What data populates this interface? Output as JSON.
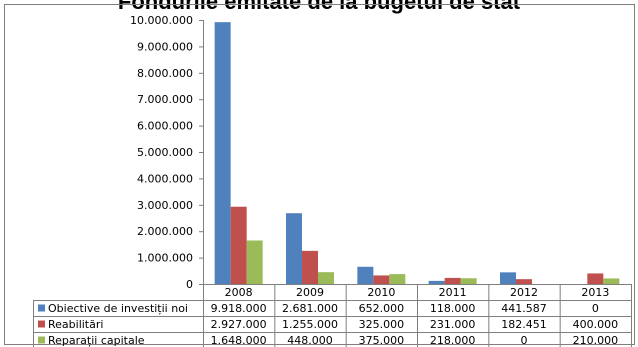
{
  "title": "Fondurile emitate de la bugetul de stat",
  "chart_data": {
    "type": "bar",
    "title": "Fondurile emitate de la bugetul de stat",
    "categories": [
      "2008",
      "2009",
      "2010",
      "2011",
      "2012",
      "2013"
    ],
    "series": [
      {
        "name": "Obiective de investiții noi",
        "values": [
          9918000,
          2681000,
          652000,
          118000,
          441587,
          0
        ],
        "labels": [
          "9.918.000",
          "2.681.000",
          "652.000",
          "118.000",
          "441.587",
          "0"
        ],
        "color": "#4F81BD"
      },
      {
        "name": "Reabilitări",
        "values": [
          2927000,
          1255000,
          325000,
          231000,
          182451,
          400000
        ],
        "labels": [
          "2.927.000",
          "1.255.000",
          "325.000",
          "231.000",
          "182.451",
          "400.000"
        ],
        "color": "#C0504D"
      },
      {
        "name": "Reparații capitale",
        "values": [
          1648000,
          448000,
          375000,
          218000,
          0,
          210000
        ],
        "labels": [
          "1.648.000",
          "448.000",
          "375.000",
          "218.000",
          "0",
          "210.000"
        ],
        "color": "#9BBB59"
      }
    ],
    "ylim": [
      0,
      10000000
    ],
    "yticks": [
      0,
      1000000,
      2000000,
      3000000,
      4000000,
      5000000,
      6000000,
      7000000,
      8000000,
      9000000,
      10000000
    ],
    "ytick_labels": [
      "0",
      "1.000.000",
      "2.000.000",
      "3.000.000",
      "4.000.000",
      "5.000.000",
      "6.000.000",
      "7.000.000",
      "8.000.000",
      "9.000.000",
      "10.000.000"
    ],
    "grid": false,
    "legend": "data-table-left"
  }
}
